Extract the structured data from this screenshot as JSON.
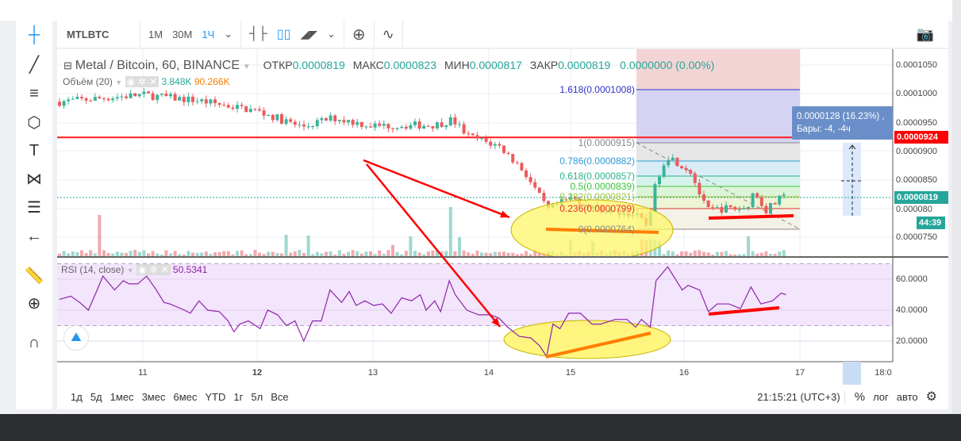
{
  "symbol": "MTLBTC",
  "toolbar": {
    "intervals": [
      "1M",
      "30M",
      "1Ч"
    ],
    "active_interval": "1Ч"
  },
  "legend": {
    "title": "Metal / Bitcoin, 60, BINANCE",
    "open_label": "ОТКР",
    "open": "0.0000819",
    "high_label": "МАКС",
    "high": "0.0000823",
    "low_label": "МИН",
    "low": "0.0000817",
    "close_label": "ЗАКР",
    "close": "0.0000819",
    "change": "0.0000000 (0.00%)"
  },
  "volume": {
    "label": "Объём (20)",
    "value1": "3.848K",
    "value2": "90.266K"
  },
  "rsi": {
    "label": "RSI (14, close)",
    "value": "50.5341",
    "values": [
      47,
      49,
      45,
      40,
      53,
      62,
      53,
      59,
      57,
      57,
      62,
      54,
      45,
      44,
      40,
      38,
      46,
      40,
      39,
      33,
      26,
      31,
      33,
      28,
      40,
      37,
      30,
      33,
      20,
      33,
      33,
      53,
      45,
      52,
      43,
      46,
      43,
      44,
      38,
      48,
      46,
      50,
      40,
      46,
      39,
      59,
      50,
      40,
      37,
      37,
      35,
      29,
      23,
      22,
      17,
      10,
      31,
      28,
      38,
      38,
      31,
      31,
      34,
      34,
      29,
      34,
      29,
      59,
      68,
      53,
      56,
      53,
      39,
      44,
      44,
      41,
      55,
      44,
      46,
      51,
      50
    ],
    "axis": [
      "60.0000",
      "40.0000",
      "20.0000"
    ]
  },
  "price_path": [
    9.86e-05,
    9.95e-05,
    9.98e-05,
    9.88e-05,
    9.7e-05,
    9.42e-05,
    9.58e-05,
    9.44e-05,
    9.46e-05,
    9.55e-05,
    9.26e-05,
    9.08e-05,
    8.66e-05,
    7.97e-05,
    8.18e-05,
    7.97e-05,
    7.9e-05,
    7.7e-05,
    8.52e-05,
    8.93e-05,
    8.66e-05,
    7.97e-05,
    8e-05,
    8e-05,
    8.3e-05,
    7.97e-05,
    8.19e-05
  ],
  "price_axis": [
    "0.0001050",
    "0.0001000",
    "0.0000950",
    "0.0000900",
    "0.0000850",
    "0.000080",
    "0.0000750"
  ],
  "horizontal_line_label": "0.0000924",
  "current_price_label": "0.0000819",
  "countdown": "44:39",
  "fib": [
    {
      "label": "1.618(0.0001008)",
      "color": "#3030c8"
    },
    {
      "label": "1(0.0000915)",
      "color": "#888888"
    },
    {
      "label": "0.786(0.0000882)",
      "color": "#2f9ad8"
    },
    {
      "label": "0.618(0.0000857)",
      "color": "#2bb38f"
    },
    {
      "label": "0.5(0.0000839)",
      "color": "#38c438"
    },
    {
      "label": "0.382(0.0000821)",
      "color": "#9cc43a"
    },
    {
      "label": "0.236(0.0000799)",
      "color": "#e03030"
    },
    {
      "label": "0(0.0000764)",
      "color": "#888888"
    }
  ],
  "measure_tooltip": {
    "line1": "0.0000128 (16.23%) ,",
    "line2": "Бары: -4, -4ч"
  },
  "time_axis": [
    "11",
    "12",
    "13",
    "14",
    "15",
    "16",
    "17",
    "18:0"
  ],
  "bottom": {
    "ranges": [
      "1д",
      "5д",
      "1мес",
      "3мес",
      "6мес",
      "YTD",
      "1г",
      "5л",
      "Все"
    ],
    "clock": "21:15:21 (UTC+3)",
    "percent": "%",
    "log": "лог",
    "auto": "авто"
  },
  "colors": {
    "up": "#3bb39a",
    "down": "#ec5b5b",
    "accent": "#2196f3",
    "rsi_line": "#8e24aa",
    "rsi_band": "#f3e5fb",
    "hline": "#ff1a1a"
  }
}
